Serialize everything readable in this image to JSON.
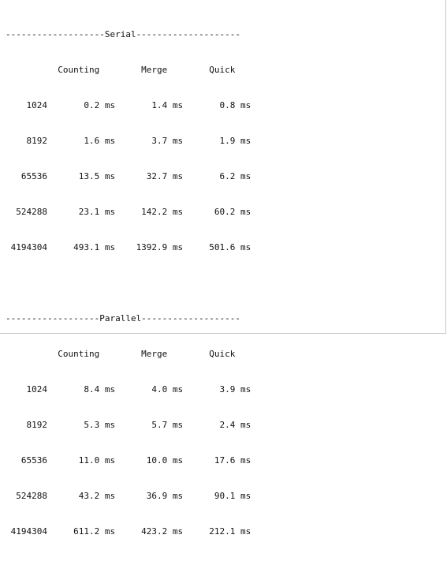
{
  "terminal": {
    "serial": {
      "header": "-------------------Serial--------------------",
      "columns": "          Counting        Merge        Quick",
      "rows": [
        "    1024       0.2 ms       1.4 ms       0.8 ms",
        "    8192       1.6 ms       3.7 ms       1.9 ms",
        "   65536      13.5 ms      32.7 ms       6.2 ms",
        "  524288      23.1 ms     142.2 ms      60.2 ms",
        " 4194304     493.1 ms    1392.9 ms     501.6 ms"
      ]
    },
    "parallel": {
      "header": "------------------Parallel-------------------",
      "columns": "          Counting        Merge        Quick",
      "rows": [
        "    1024       8.4 ms       4.0 ms       3.9 ms",
        "    8192       5.3 ms       5.7 ms       2.4 ms",
        "   65536      11.0 ms      10.0 ms      17.6 ms",
        "  524288      43.2 ms      36.9 ms      90.1 ms",
        " 4194304     611.2 ms     423.2 ms     212.1 ms"
      ]
    }
  }
}
